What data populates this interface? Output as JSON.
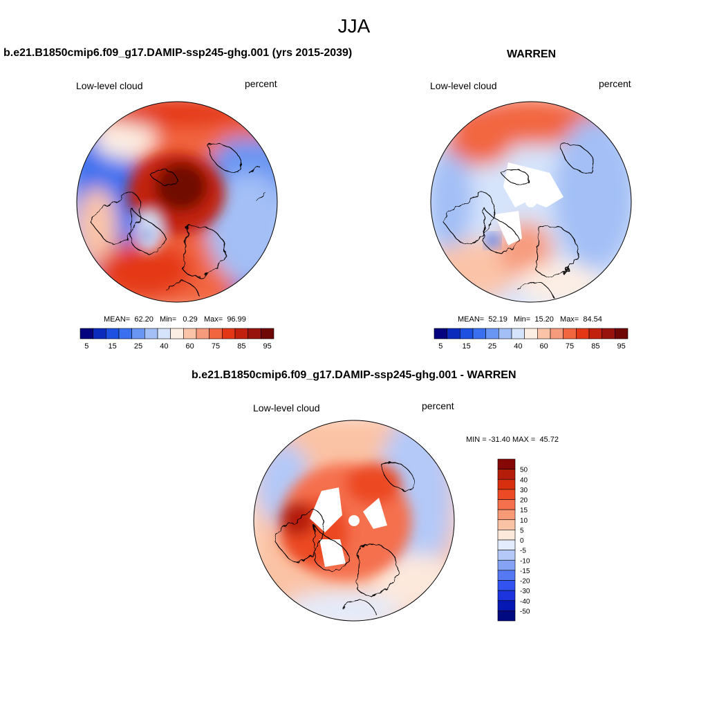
{
  "page": {
    "title": "JJA"
  },
  "colors": {
    "abs_scale": [
      "#04027e",
      "#0b2bbd",
      "#1d4fe0",
      "#3a6ff0",
      "#6a96f3",
      "#a3bff6",
      "#d6e4fb",
      "#fdeee3",
      "#fbc4a8",
      "#f79b7d",
      "#f2663f",
      "#e43716",
      "#c2210d",
      "#97130b",
      "#6f0706"
    ],
    "diff_scale": [
      "#000a80",
      "#0618b4",
      "#1b34de",
      "#3253ef",
      "#5578f3",
      "#84a3f5",
      "#b4c9f8",
      "#e3ecfc",
      "#fde8dc",
      "#fbc3a5",
      "#f89a75",
      "#f5704d",
      "#ec4a24",
      "#d8300f",
      "#b51d0b",
      "#850806"
    ]
  },
  "chart_data": [
    {
      "type": "heatmap",
      "projection": "north-polar-stereographic",
      "title": "b.e21.B1850cmip6.f09_g17.DAMIP-ssp245-ghg.001 (yrs 2015-2039)",
      "variable": "Low-level cloud",
      "units": "percent",
      "stats": {
        "mean_label": "MEAN=",
        "mean": "62.20",
        "min_label": "Min=",
        "min": "0.29",
        "max_label": "Max=",
        "max": "96.99"
      },
      "colorbar": {
        "orientation": "horizontal",
        "tick_labels": [
          "5",
          "15",
          "25",
          "40",
          "60",
          "75",
          "85",
          "95"
        ],
        "levels": [
          5,
          10,
          15,
          20,
          25,
          30,
          40,
          50,
          60,
          70,
          75,
          80,
          85,
          90,
          95
        ]
      },
      "pattern_summary": "high (75-95) over Arctic Ocean, Greenland margins and Siberia; low (5-30) over N. Pacific/Alaska margin and N. Atlantic-Europe sector"
    },
    {
      "type": "heatmap",
      "projection": "north-polar-stereographic",
      "title": "WARREN",
      "variable": "Low-level cloud",
      "units": "percent",
      "stats": {
        "mean_label": "MEAN=",
        "mean": "52.19",
        "min_label": "Min=",
        "min": "15.20",
        "max_label": "Max=",
        "max": "84.54"
      },
      "colorbar": {
        "orientation": "horizontal",
        "tick_labels": [
          "5",
          "15",
          "25",
          "40",
          "60",
          "75",
          "85",
          "95"
        ],
        "levels": [
          5,
          10,
          15,
          20,
          25,
          30,
          40,
          50,
          60,
          70,
          75,
          80,
          85,
          90,
          95
        ]
      },
      "pattern_summary": "moderate (40-75) over most regions, higher (75-85) over N. Pacific; missing data near pole and over Greenland"
    },
    {
      "type": "heatmap",
      "projection": "north-polar-stereographic",
      "title": "b.e21.B1850cmip6.f09_g17.DAMIP-ssp245-ghg.001 - WARREN",
      "variable": "Low-level cloud",
      "units": "percent",
      "stats": {
        "min_label": "MIN =",
        "min": "-31.40",
        "max_label": "MAX =",
        "max": "45.72"
      },
      "colorbar": {
        "orientation": "vertical",
        "tick_labels": [
          "50",
          "40",
          "30",
          "20",
          "15",
          "10",
          "5",
          "0",
          "-5",
          "-10",
          "-15",
          "-20",
          "-30",
          "-40",
          "-50"
        ],
        "levels": [
          -50,
          -40,
          -30,
          -20,
          -15,
          -10,
          -5,
          0,
          5,
          10,
          15,
          20,
          30,
          40,
          50
        ]
      },
      "pattern_summary": "positive (10-45) over Arctic Ocean and Canadian Archipelago; negative (-5 to -30) along N. Atlantic and N. Pacific margins"
    }
  ]
}
